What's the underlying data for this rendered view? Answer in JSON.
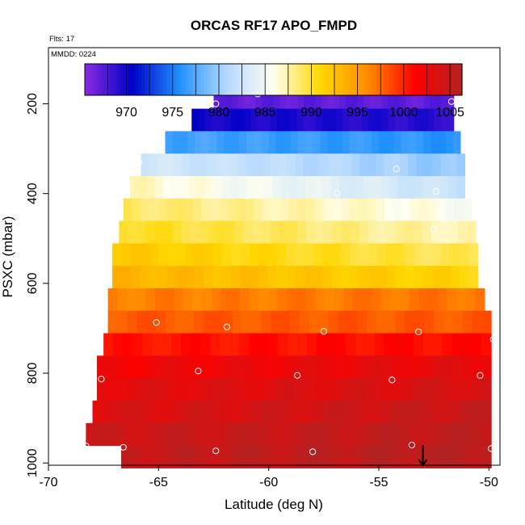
{
  "chart_data": {
    "type": "heatmap",
    "title": "ORCAS RF17 APO_FMPD",
    "annotations": {
      "flts": "Flts: 17",
      "mmdd": "MMDD: 0224"
    },
    "xlabel": "Latitude (deg N)",
    "ylabel": "PSXC (mbar)",
    "xlim": [
      -70,
      -49.5
    ],
    "ylim": [
      1005,
      75
    ],
    "x_ticks": [
      -70,
      -65,
      -60,
      -55,
      -50
    ],
    "y_ticks": [
      200,
      400,
      600,
      800,
      1000
    ],
    "colorbar": {
      "range": [
        965.5,
        1006.3
      ],
      "ticks": [
        970,
        975,
        980,
        985,
        990,
        995,
        1000,
        1005
      ],
      "palette": [
        "#8a2be2",
        "#0000c8",
        "#1e90ff",
        "#b4d8ff",
        "#fffff0",
        "#ffd700",
        "#ff8c00",
        "#ff0000",
        "#b22222"
      ],
      "divisions": [
        968,
        970,
        972.5,
        975,
        977.5,
        980,
        982.5,
        985,
        987.5,
        990,
        992.5,
        995,
        997.5,
        1000,
        1002.5,
        1005
      ]
    },
    "bands": [
      {
        "p": 186,
        "xmin": -62.5,
        "xmax": -51.6,
        "v0": 967.0,
        "v1": 967.2
      },
      {
        "p": 236,
        "xmin": -63.5,
        "xmax": -51.6,
        "v0": 970.0,
        "v1": 969.0
      },
      {
        "p": 286,
        "xmin": -64.7,
        "xmax": -51.3,
        "v0": 977.0,
        "v1": 976.0
      },
      {
        "p": 336,
        "xmin": -65.8,
        "xmax": -51.1,
        "v0": 983.0,
        "v1": 979.5
      },
      {
        "p": 386,
        "xmin": -66.3,
        "xmax": -51.1,
        "v0": 987.0,
        "v1": 982.0
      },
      {
        "p": 436,
        "xmin": -66.6,
        "xmax": -50.8,
        "v0": 989.0,
        "v1": 985.5
      },
      {
        "p": 486,
        "xmin": -66.8,
        "xmax": -50.6,
        "v0": 990.5,
        "v1": 987.0
      },
      {
        "p": 536,
        "xmin": -67.1,
        "xmax": -50.5,
        "v0": 992.0,
        "v1": 989.0
      },
      {
        "p": 586,
        "xmin": -67.1,
        "xmax": -50.5,
        "v0": 993.5,
        "v1": 991.0
      },
      {
        "p": 636,
        "xmin": -67.3,
        "xmax": -50.2,
        "v0": 996.5,
        "v1": 997.0
      },
      {
        "p": 686,
        "xmin": -67.3,
        "xmax": -49.9,
        "v0": 998.0,
        "v1": 998.0
      },
      {
        "p": 736,
        "xmin": -67.5,
        "xmax": -49.9,
        "v0": 1000.5,
        "v1": 1001.0
      },
      {
        "p": 786,
        "xmin": -67.8,
        "xmax": -49.9,
        "v0": 1002.0,
        "v1": 1003.0
      },
      {
        "p": 836,
        "xmin": -67.8,
        "xmax": -49.9,
        "v0": 1003.0,
        "v1": 1004.0
      },
      {
        "p": 886,
        "xmin": -68.0,
        "xmax": -49.9,
        "v0": 1003.5,
        "v1": 1005.0
      },
      {
        "p": 936,
        "xmin": -68.3,
        "xmax": -49.9,
        "v0": 1004.5,
        "v1": 1005.5
      },
      {
        "p": 986,
        "xmin": -66.7,
        "xmax": -49.9,
        "v0": 1005.0,
        "v1": 1006.0
      }
    ],
    "points": [
      {
        "x": -60.5,
        "y": 178
      },
      {
        "x": -62.4,
        "y": 200
      },
      {
        "x": -51.7,
        "y": 195
      },
      {
        "x": -65.9,
        "y": 330
      },
      {
        "x": -54.2,
        "y": 345
      },
      {
        "x": -64.6,
        "y": 395
      },
      {
        "x": -61.0,
        "y": 405
      },
      {
        "x": -56.9,
        "y": 399
      },
      {
        "x": -52.4,
        "y": 395
      },
      {
        "x": -52.5,
        "y": 480
      },
      {
        "x": -67.3,
        "y": 537
      },
      {
        "x": -65.1,
        "y": 687
      },
      {
        "x": -61.9,
        "y": 697
      },
      {
        "x": -57.5,
        "y": 707
      },
      {
        "x": -53.2,
        "y": 708
      },
      {
        "x": -67.7,
        "y": 740
      },
      {
        "x": -49.8,
        "y": 725
      },
      {
        "x": -63.2,
        "y": 795
      },
      {
        "x": -67.6,
        "y": 813
      },
      {
        "x": -58.7,
        "y": 805
      },
      {
        "x": -54.4,
        "y": 815
      },
      {
        "x": -50.4,
        "y": 805
      },
      {
        "x": -68.3,
        "y": 962
      },
      {
        "x": -66.6,
        "y": 965
      },
      {
        "x": -62.4,
        "y": 973
      },
      {
        "x": -58.0,
        "y": 975
      },
      {
        "x": -53.5,
        "y": 960
      },
      {
        "x": -49.9,
        "y": 968
      }
    ],
    "arrow": {
      "x": -53.0,
      "y0": 960,
      "y1": 1005
    },
    "grid": false,
    "legend": "none"
  }
}
